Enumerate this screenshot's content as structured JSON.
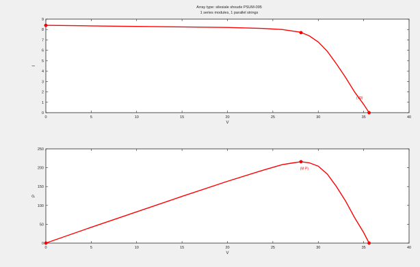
{
  "figure": {
    "background": "#f0f0f0",
    "axes_background": "#ffffff",
    "curve_color": "#ff0000"
  },
  "chart_data": [
    {
      "type": "line",
      "title": "Array type: silesiale shoude PSUM-095",
      "subtitle": "1 series modules, 1 parallel strings",
      "xlabel": "V",
      "ylabel": "I",
      "xlim": [
        0,
        40
      ],
      "ylim": [
        0,
        9
      ],
      "xticks": [
        0,
        5,
        10,
        15,
        20,
        25,
        30,
        35,
        40
      ],
      "yticks": [
        0,
        1,
        2,
        3,
        4,
        5,
        6,
        7,
        8,
        9
      ],
      "grid": false,
      "series": [
        {
          "x": [
            0,
            5,
            10,
            15,
            20,
            24,
            26,
            28,
            29,
            30,
            31,
            32,
            33,
            34,
            35,
            35.6
          ],
          "y": [
            8.4,
            8.35,
            8.3,
            8.25,
            8.2,
            8.1,
            8.0,
            7.75,
            7.4,
            6.8,
            5.9,
            4.7,
            3.4,
            2.0,
            0.8,
            0.0
          ]
        }
      ],
      "markers": [
        {
          "x": 0,
          "y": 8.4
        },
        {
          "x": 28.1,
          "y": 7.7
        },
        {
          "x": 35.6,
          "y": 0
        }
      ],
      "annotations": [
        {
          "text": "(V0)",
          "x": 34.2,
          "y": 1.3
        }
      ]
    },
    {
      "type": "line",
      "xlabel": "V",
      "ylabel": "P",
      "xlim": [
        0,
        40
      ],
      "ylim": [
        0,
        250
      ],
      "xticks": [
        0,
        5,
        10,
        15,
        20,
        25,
        30,
        35,
        40
      ],
      "yticks": [
        0,
        50,
        100,
        150,
        200,
        250
      ],
      "grid": false,
      "series": [
        {
          "x": [
            0,
            5,
            10,
            15,
            20,
            24,
            26,
            27,
            28.1,
            29,
            30,
            31,
            32,
            33,
            34,
            35,
            35.6
          ],
          "y": [
            0,
            42,
            83,
            124,
            164,
            194,
            208,
            212,
            216,
            213,
            204,
            183,
            150,
            112,
            68,
            28,
            0
          ]
        }
      ],
      "markers": [
        {
          "x": 0,
          "y": 0
        },
        {
          "x": 28.1,
          "y": 216
        },
        {
          "x": 35.6,
          "y": 0
        }
      ],
      "annotations": [
        {
          "text": "(M P)",
          "x": 28.0,
          "y": 195
        }
      ]
    }
  ]
}
